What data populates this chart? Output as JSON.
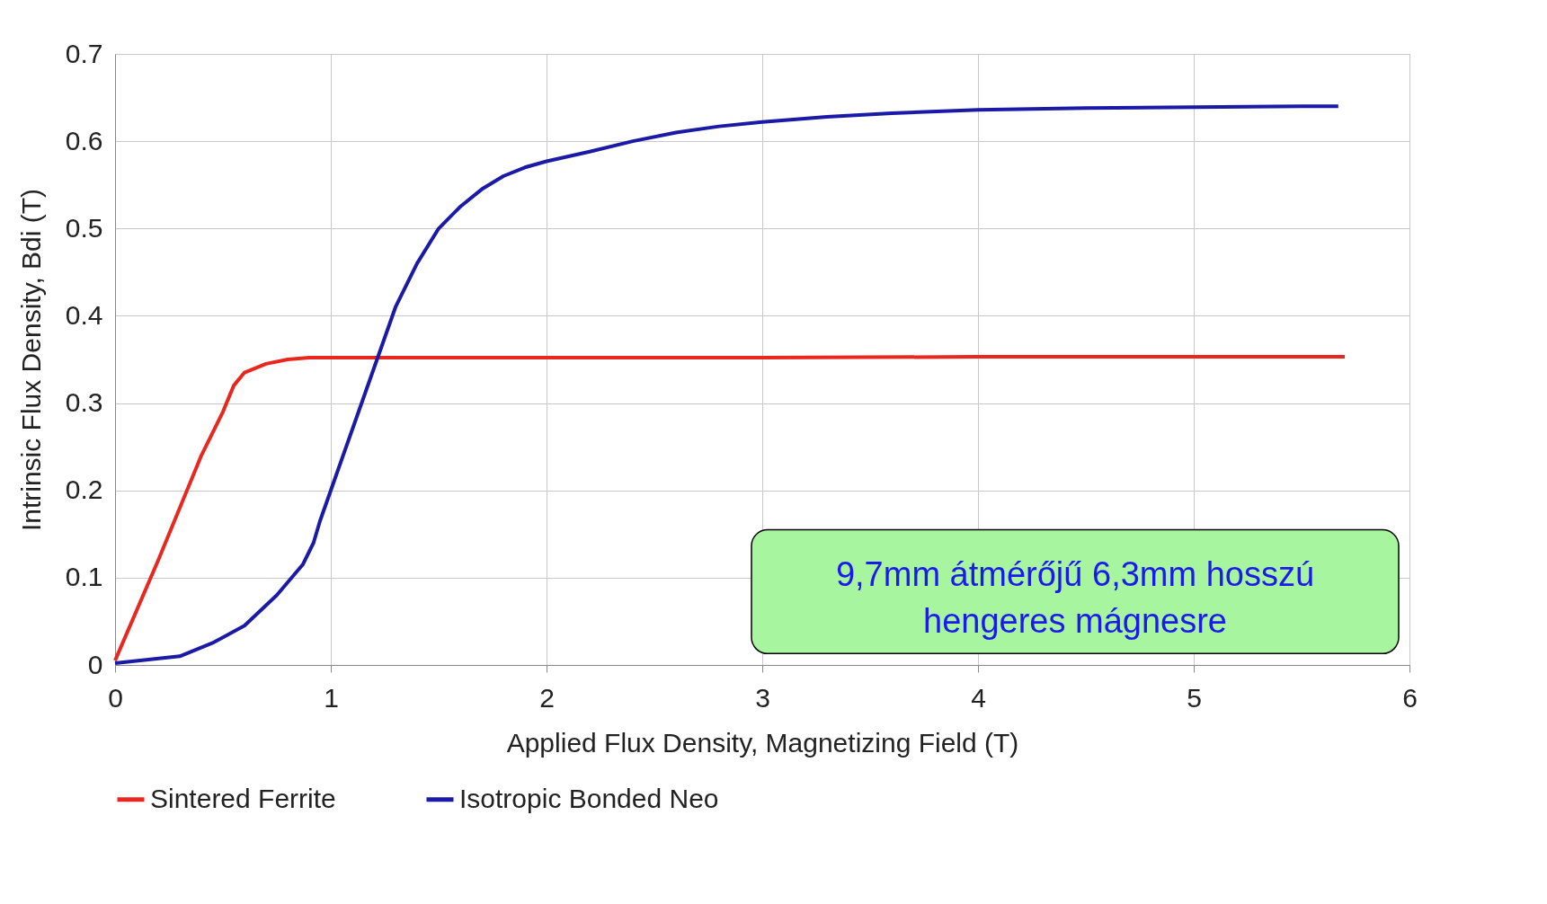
{
  "chart_data": {
    "type": "line",
    "xlabel": "Applied Flux Density, Magnetizing Field (T)",
    "ylabel": "Intrinsic Flux Density, Bdi (T)",
    "xlim": [
      0,
      6
    ],
    "xticks": [
      0,
      1,
      2,
      3,
      4,
      5,
      6
    ],
    "ylim": [
      0,
      0.7
    ],
    "yticks": [
      0,
      0.1,
      0.2,
      0.3,
      0.4,
      0.5,
      0.6,
      0.7
    ],
    "grid": true,
    "legend": "bottom",
    "marker": "none",
    "line_style": "solid",
    "annotations": [
      "9,7mm átmérőjű 6,3mm hosszú\nhengeres mágnesre"
    ],
    "series": [
      {
        "name": "Sintered Ferrite",
        "color": "#e8281e",
        "x": [
          0,
          0.2,
          0.4,
          0.5,
          0.55,
          0.6,
          0.7,
          0.8,
          0.9,
          1.0,
          2.0,
          3.0,
          4.0,
          5.0,
          5.7
        ],
        "values": [
          0.005,
          0.12,
          0.24,
          0.29,
          0.32,
          0.335,
          0.345,
          0.35,
          0.352,
          0.352,
          0.352,
          0.352,
          0.353,
          0.353,
          0.353
        ]
      },
      {
        "name": "Isotropic Bonded Neo",
        "color": "#1a1aa6",
        "x": [
          0,
          0.3,
          0.45,
          0.6,
          0.75,
          0.87,
          0.92,
          0.95,
          1.0,
          1.1,
          1.2,
          1.3,
          1.4,
          1.5,
          1.6,
          1.7,
          1.8,
          1.9,
          2.0,
          2.2,
          2.4,
          2.6,
          2.8,
          3.0,
          3.3,
          3.6,
          4.0,
          4.5,
          5.0,
          5.5,
          5.67
        ],
        "values": [
          0.002,
          0.01,
          0.025,
          0.045,
          0.08,
          0.115,
          0.14,
          0.165,
          0.2,
          0.27,
          0.34,
          0.41,
          0.46,
          0.5,
          0.525,
          0.545,
          0.56,
          0.57,
          0.577,
          0.588,
          0.6,
          0.61,
          0.617,
          0.622,
          0.628,
          0.632,
          0.636,
          0.638,
          0.639,
          0.64,
          0.64
        ]
      }
    ]
  }
}
